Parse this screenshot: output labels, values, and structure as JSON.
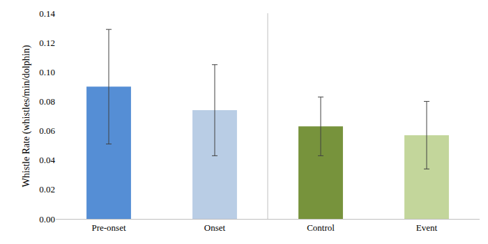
{
  "chart_data": {
    "type": "bar",
    "ylabel": "Whistle Rate (whistles/min/dolphin)",
    "categories": [
      "Pre-onset",
      "Onset",
      "Control",
      "Event"
    ],
    "values": [
      0.09,
      0.074,
      0.063,
      0.057
    ],
    "errors": [
      0.039,
      0.031,
      0.02,
      0.023
    ],
    "colors": [
      "#558ed5",
      "#b9cde5",
      "#77933c",
      "#c3d69b"
    ],
    "ylim": [
      0,
      0.14
    ],
    "yticks": [
      {
        "value": 0,
        "label": "0.00"
      },
      0.02,
      0.04,
      0.06,
      0.08,
      {
        "value": 0.1,
        "label": "0.10"
      },
      0.12,
      0.14
    ],
    "grid": false
  }
}
